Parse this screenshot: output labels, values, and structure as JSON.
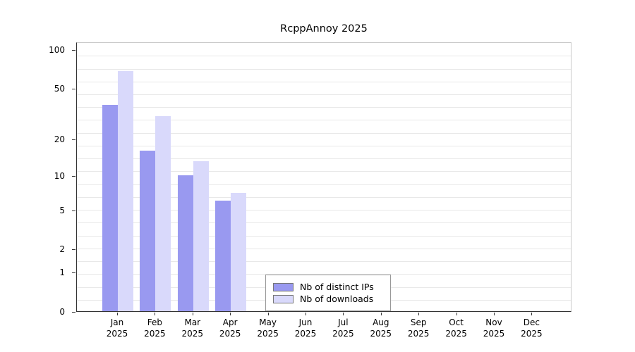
{
  "title": "RcppAnnoy 2025",
  "chart_data": {
    "type": "bar",
    "title": "RcppAnnoy 2025",
    "months": [
      "Jan",
      "Feb",
      "Mar",
      "Apr",
      "May",
      "Jun",
      "Jul",
      "Aug",
      "Sep",
      "Oct",
      "Nov",
      "Dec"
    ],
    "year": "2025",
    "categories": [
      "Jan 2025",
      "Feb 2025",
      "Mar 2025",
      "Apr 2025",
      "May 2025",
      "Jun 2025",
      "Jul 2025",
      "Aug 2025",
      "Sep 2025",
      "Oct 2025",
      "Nov 2025",
      "Dec 2025"
    ],
    "series": [
      {
        "name": "Nb of distinct IPs",
        "color": "#9999f0",
        "values": [
          37,
          16,
          10,
          6,
          0,
          0,
          0,
          0,
          0,
          0,
          0,
          0
        ]
      },
      {
        "name": "Nb of downloads",
        "color": "#d9d9fb",
        "values": [
          68,
          30,
          13,
          7,
          0,
          0,
          0,
          0,
          0,
          0,
          0,
          0
        ]
      }
    ],
    "y_ticks": [
      0,
      1,
      2,
      5,
      10,
      20,
      50,
      100
    ],
    "y_scale": "log1p",
    "ylim": [
      0,
      100
    ],
    "grid": "horizontal-light-gray",
    "legend": {
      "position": "bottom-center-inside",
      "entries": [
        "Nb of distinct IPs",
        "Nb of downloads"
      ]
    }
  }
}
